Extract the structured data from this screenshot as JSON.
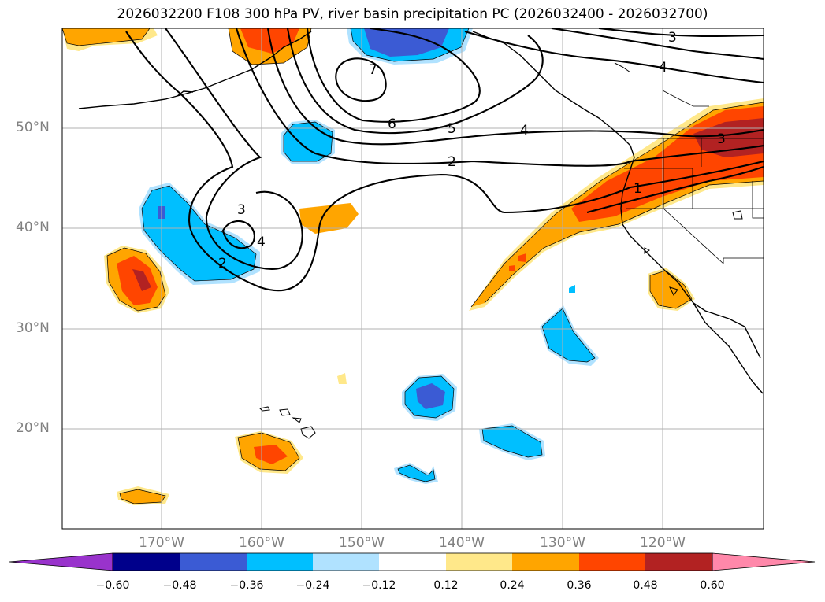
{
  "title": "2026032200 F108 300 hPa PV, river basin precipitation PC (2026032400 - 2026032700)",
  "lat_labels": [
    "50°N",
    "40°N",
    "30°N",
    "20°N"
  ],
  "lon_labels": [
    "170°W",
    "160°W",
    "150°W",
    "140°W",
    "130°W",
    "120°W"
  ],
  "contour_labels": [
    "3",
    "4",
    "7",
    "6",
    "5",
    "4",
    "2",
    "1",
    "3",
    "3",
    "4",
    "2"
  ],
  "colorbar": {
    "ticks": [
      "−0.60",
      "−0.48",
      "−0.36",
      "−0.24",
      "−0.12",
      "0.12",
      "0.24",
      "0.36",
      "0.48",
      "0.60"
    ],
    "colors": [
      "#9933cc",
      "#00008b",
      "#3b5bd4",
      "#00bfff",
      "#b0e2ff",
      "#ffffff",
      "#ffe88a",
      "#ffa500",
      "#ff4500",
      "#b22222",
      "#ff88aa"
    ]
  },
  "colors": {
    "positive_light": "#ffe88a",
    "positive_mid": "#ffa500",
    "positive_strong": "#ff4500",
    "positive_max": "#b22222",
    "negative_light": "#b0e2ff",
    "negative_mid": "#00bfff",
    "negative_strong": "#3b5bd4",
    "grid": "#b0b0b0",
    "tick_label": "#808080"
  }
}
